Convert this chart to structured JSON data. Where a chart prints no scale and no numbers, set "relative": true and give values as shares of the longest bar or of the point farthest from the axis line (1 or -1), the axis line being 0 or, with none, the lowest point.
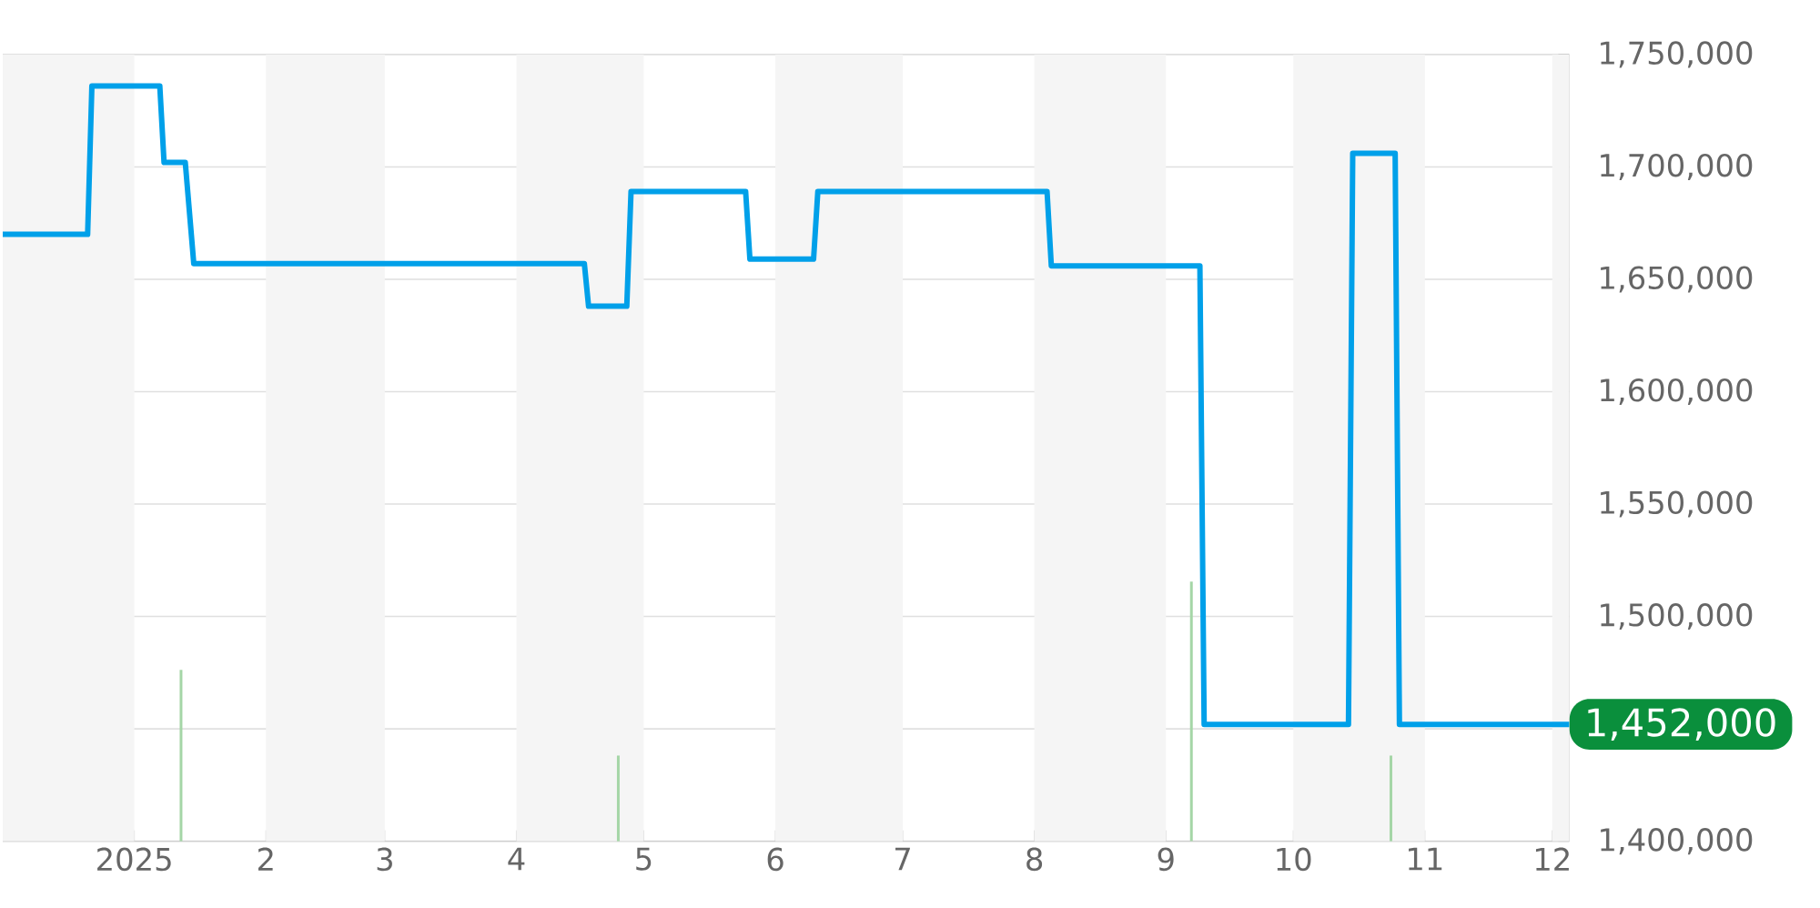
{
  "chart_data": [
    {
      "type": "line",
      "x": [
        "2024-12-01",
        "2024-12-21",
        "2024-12-22",
        "2025-01-07",
        "2025-01-08",
        "2025-01-13",
        "2025-01-15",
        "2025-04-17",
        "2025-04-18",
        "2025-04-27",
        "2025-04-28",
        "2025-05-25",
        "2025-05-26",
        "2025-06-10",
        "2025-06-11",
        "2025-08-04",
        "2025-08-05",
        "2025-09-09",
        "2025-09-10",
        "2025-10-14",
        "2025-10-15",
        "2025-10-25",
        "2025-10-26",
        "2025-12-05"
      ],
      "series": [
        {
          "color": "#00a0e9",
          "values": [
            1670000,
            1670000,
            1736000,
            1736000,
            1702000,
            1702000,
            1657000,
            1657000,
            1638000,
            1638000,
            1689000,
            1689000,
            1659000,
            1659000,
            1689000,
            1689000,
            1656000,
            1656000,
            1452000,
            1452000,
            1706000,
            1706000,
            1452000,
            1452000
          ]
        }
      ],
      "xlim": [
        "2024-12-01",
        "2025-12-05"
      ],
      "xticks": [
        {
          "value": "2025-01-01",
          "label": "2025"
        },
        {
          "value": "2025-02-01",
          "label": "2"
        },
        {
          "value": "2025-03-01",
          "label": "3"
        },
        {
          "value": "2025-04-01",
          "label": "4"
        },
        {
          "value": "2025-05-01",
          "label": "5"
        },
        {
          "value": "2025-06-01",
          "label": "6"
        },
        {
          "value": "2025-07-01",
          "label": "7"
        },
        {
          "value": "2025-08-01",
          "label": "8"
        },
        {
          "value": "2025-09-01",
          "label": "9"
        },
        {
          "value": "2025-10-01",
          "label": "10"
        },
        {
          "value": "2025-11-01",
          "label": "11"
        },
        {
          "value": "2025-12-01",
          "label": "12"
        }
      ],
      "ylim": [
        1400000,
        1750000
      ],
      "yticks": [
        {
          "value": 1400000,
          "label": "1,400,000"
        },
        {
          "value": 1450000,
          "label": null
        },
        {
          "value": 1500000,
          "label": "1,500,000"
        },
        {
          "value": 1550000,
          "label": "1,550,000"
        },
        {
          "value": 1600000,
          "label": "1,600,000"
        },
        {
          "value": 1650000,
          "label": "1,650,000"
        },
        {
          "value": 1700000,
          "label": "1,700,000"
        },
        {
          "value": 1750000,
          "label": "1,750,000"
        }
      ],
      "grid": "y",
      "bands": [
        {
          "axis": "x",
          "from": "2024-12-01",
          "to": "2025-01-01",
          "color": "#f5f5f5"
        },
        {
          "axis": "x",
          "from": "2025-02-01",
          "to": "2025-03-01",
          "color": "#f5f5f5"
        },
        {
          "axis": "x",
          "from": "2025-04-01",
          "to": "2025-05-01",
          "color": "#f5f5f5"
        },
        {
          "axis": "x",
          "from": "2025-06-01",
          "to": "2025-07-01",
          "color": "#f5f5f5"
        },
        {
          "axis": "x",
          "from": "2025-08-01",
          "to": "2025-09-01",
          "color": "#f5f5f5"
        },
        {
          "axis": "x",
          "from": "2025-10-01",
          "to": "2025-11-01",
          "color": "#f5f5f5"
        },
        {
          "axis": "x",
          "from": "2025-12-01",
          "to": "2025-12-05",
          "color": "#f5f5f5"
        }
      ],
      "annotations": [
        {
          "text": "1,452,000",
          "x": "2025-12-05",
          "y": 1452000
        }
      ]
    },
    {
      "type": "bar",
      "relative": true,
      "x": [
        "2025-01-12",
        "2025-04-25",
        "2025-09-07",
        "2025-10-24"
      ],
      "xlim": [
        "2024-12-01",
        "2025-12-05"
      ],
      "series": [
        {
          "color": "#a5d6a7",
          "values": [
            0.66,
            0.33,
            1,
            0.33
          ]
        }
      ]
    }
  ]
}
